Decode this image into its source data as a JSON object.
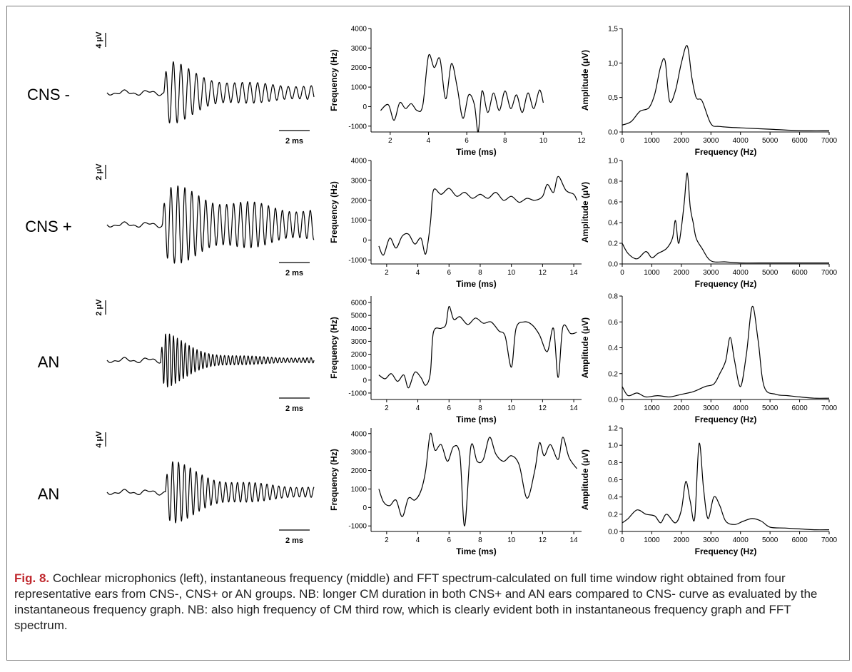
{
  "caption": {
    "fig_label": "Fig. 8.",
    "text": "Cochlear microphonics (left), instantaneous frequency (middle) and FFT spectrum-calculated on full time window right obtained from four representative ears from CNS-, CNS+ or AN groups. NB: longer CM duration in both CNS+ and AN ears compared to CNS- curve as evaluated by the instantaneous frequency graph. NB: also high frequency of CM third row, which is clearly evident both in instantaneous frequency graph and FFT spectrum."
  },
  "rows": [
    {
      "label": "CNS -",
      "cm": {
        "amp_scale": "4 μV",
        "time_scale": "2 ms",
        "duration_ms": 13.5,
        "onset_ms": 3.7,
        "freq_hz": 2000,
        "peak": 1.0,
        "decay": 0.45,
        "sustain": 0.22
      },
      "inst": {
        "type": "line",
        "xlabel": "Time (ms)",
        "ylabel": "Frequency (Hz)",
        "xlim": [
          1,
          12
        ],
        "xticks": [
          2,
          4,
          6,
          8,
          10,
          12
        ],
        "ylim": [
          -1300,
          4000
        ],
        "yticks": [
          -1000,
          0,
          1000,
          2000,
          3000,
          4000
        ],
        "x": [
          1.5,
          1.9,
          2.2,
          2.5,
          2.8,
          3.1,
          3.4,
          3.7,
          4.0,
          4.3,
          4.6,
          4.9,
          5.2,
          5.5,
          5.8,
          6.1,
          6.4,
          6.6,
          6.8,
          7.1,
          7.4,
          7.7,
          8.0,
          8.3,
          8.6,
          8.9,
          9.2,
          9.5,
          9.8,
          10.0
        ],
        "y": [
          -200,
          100,
          -700,
          200,
          -100,
          150,
          -200,
          50,
          2600,
          2000,
          2450,
          400,
          2200,
          1000,
          -600,
          600,
          100,
          -1300,
          800,
          -300,
          700,
          -200,
          800,
          -100,
          600,
          -300,
          700,
          -100,
          850,
          200
        ]
      },
      "fft": {
        "type": "line",
        "xlabel": "Frequency (Hz)",
        "ylabel": "Amplitude (μV)",
        "xlim": [
          0,
          7000
        ],
        "xticks": [
          0,
          1000,
          2000,
          3000,
          4000,
          5000,
          6000,
          7000
        ],
        "ylim": [
          0,
          1.5
        ],
        "yticks": [
          "0.0",
          "0,5",
          "1,0",
          "1,5"
        ],
        "ytickvals": [
          0,
          0.5,
          1.0,
          1.5
        ],
        "x": [
          0,
          300,
          600,
          900,
          1100,
          1300,
          1450,
          1600,
          1800,
          2000,
          2200,
          2350,
          2500,
          2700,
          3000,
          3300,
          4000,
          5000,
          6000,
          7000
        ],
        "y": [
          0.1,
          0.15,
          0.3,
          0.35,
          0.55,
          0.95,
          1.03,
          0.45,
          0.6,
          1.0,
          1.25,
          0.8,
          0.5,
          0.45,
          0.12,
          0.08,
          0.06,
          0.04,
          0.02,
          0.02
        ]
      }
    },
    {
      "label": "CNS +",
      "cm": {
        "amp_scale": "2 μV",
        "time_scale": "2 ms",
        "duration_ms": 13.5,
        "onset_ms": 3.6,
        "freq_hz": 2200,
        "peak": 1.0,
        "decay": 0.18,
        "sustain": 0.3
      },
      "inst": {
        "type": "line",
        "xlabel": "Time (ms)",
        "ylabel": "Frequency (Hz)",
        "xlim": [
          1,
          14.5
        ],
        "xticks": [
          2,
          4,
          6,
          8,
          10,
          12,
          14
        ],
        "ylim": [
          -1200,
          4000
        ],
        "yticks": [
          -1000,
          0,
          1000,
          2000,
          3000,
          4000
        ],
        "x": [
          1.5,
          1.8,
          2.2,
          2.6,
          3.0,
          3.4,
          3.8,
          4.2,
          4.5,
          4.8,
          5.0,
          5.5,
          6.0,
          6.5,
          7.0,
          7.5,
          8.0,
          8.5,
          9.0,
          9.5,
          10.0,
          10.5,
          11.0,
          11.5,
          12.0,
          12.3,
          12.7,
          13.0,
          13.5,
          14.0,
          14.2
        ],
        "y": [
          -300,
          -750,
          100,
          -400,
          200,
          300,
          -200,
          100,
          -700,
          800,
          2500,
          2300,
          2600,
          2200,
          2400,
          2100,
          2300,
          2100,
          2400,
          2000,
          2200,
          1900,
          2100,
          2000,
          2200,
          2800,
          2400,
          3200,
          2500,
          2300,
          2000
        ]
      },
      "fft": {
        "type": "line",
        "xlabel": "Frequency (Hz)",
        "ylabel": "Amplitude (μV)",
        "xlim": [
          0,
          7000
        ],
        "xticks": [
          0,
          1000,
          2000,
          3000,
          4000,
          5000,
          6000,
          7000
        ],
        "ylim": [
          0,
          1.0
        ],
        "yticks": [
          "0.0",
          "0.2",
          "0.4",
          "0.6",
          "0.8",
          "1.0"
        ],
        "ytickvals": [
          0,
          0.2,
          0.4,
          0.6,
          0.8,
          1.0
        ],
        "x": [
          0,
          200,
          500,
          800,
          1000,
          1200,
          1500,
          1700,
          1800,
          1900,
          2000,
          2100,
          2200,
          2300,
          2400,
          2500,
          2700,
          3000,
          3500,
          4000,
          5000,
          6000,
          7000
        ],
        "y": [
          0.2,
          0.1,
          0.05,
          0.12,
          0.06,
          0.1,
          0.15,
          0.25,
          0.42,
          0.2,
          0.35,
          0.6,
          0.88,
          0.55,
          0.4,
          0.25,
          0.15,
          0.03,
          0.02,
          0.01,
          0.01,
          0.01,
          0.01
        ]
      }
    },
    {
      "label": "AN",
      "cm": {
        "amp_scale": "2 μV",
        "time_scale": "2 ms",
        "duration_ms": 13.5,
        "onset_ms": 3.5,
        "freq_hz": 3900,
        "peak": 1.0,
        "decay": 0.55,
        "sustain": 0.08
      },
      "inst": {
        "type": "line",
        "xlabel": "Time (ms)",
        "ylabel": "Frequency (Hz)",
        "xlim": [
          1,
          14.5
        ],
        "xticks": [
          2,
          4,
          6,
          8,
          10,
          12,
          14
        ],
        "ylim": [
          -1500,
          6500
        ],
        "yticks": [
          -1000,
          0,
          1000,
          2000,
          3000,
          4000,
          5000,
          6000
        ],
        "x": [
          1.5,
          1.9,
          2.3,
          2.7,
          3.1,
          3.4,
          3.8,
          4.2,
          4.5,
          4.8,
          5.0,
          5.5,
          5.8,
          6.0,
          6.3,
          6.7,
          7.2,
          7.7,
          8.2,
          8.7,
          9.2,
          9.6,
          10.0,
          10.3,
          10.8,
          11.3,
          11.8,
          12.3,
          12.7,
          13.0,
          13.3,
          13.8,
          14.2
        ],
        "y": [
          400,
          100,
          500,
          -100,
          400,
          -600,
          600,
          200,
          -400,
          500,
          3700,
          4000,
          4300,
          5700,
          4700,
          4900,
          4300,
          4800,
          4400,
          4500,
          3800,
          3400,
          1000,
          4000,
          4500,
          4300,
          3500,
          2200,
          4000,
          200,
          4100,
          3600,
          3700
        ]
      },
      "fft": {
        "type": "line",
        "xlabel": "Frequency (Hz)",
        "ylabel": "Amplitude (μV)",
        "xlim": [
          0,
          7000
        ],
        "xticks": [
          0,
          1000,
          2000,
          3000,
          4000,
          5000,
          6000,
          7000
        ],
        "ylim": [
          0,
          0.8
        ],
        "yticks": [
          "0.0",
          "0.2",
          "0.4",
          "0.6",
          "0.8"
        ],
        "ytickvals": [
          0,
          0.2,
          0.4,
          0.6,
          0.8
        ],
        "x": [
          0,
          200,
          500,
          800,
          1200,
          1600,
          2000,
          2400,
          2800,
          3100,
          3300,
          3500,
          3650,
          3800,
          4000,
          4200,
          4400,
          4600,
          4800,
          5200,
          5600,
          6000,
          6500,
          7000
        ],
        "y": [
          0.1,
          0.03,
          0.05,
          0.02,
          0.03,
          0.02,
          0.04,
          0.06,
          0.1,
          0.12,
          0.2,
          0.3,
          0.48,
          0.3,
          0.1,
          0.35,
          0.72,
          0.45,
          0.1,
          0.04,
          0.03,
          0.02,
          0.01,
          0.01
        ]
      }
    },
    {
      "label": "AN",
      "cm": {
        "amp_scale": "4 μV",
        "time_scale": "2 ms",
        "duration_ms": 13.5,
        "onset_ms": 3.8,
        "freq_hz": 2600,
        "peak": 1.0,
        "decay": 0.35,
        "sustain": 0.14
      },
      "inst": {
        "type": "line",
        "xlabel": "Time (ms)",
        "ylabel": "Frequency (Hz)",
        "xlim": [
          1,
          14.5
        ],
        "xticks": [
          2,
          4,
          6,
          8,
          10,
          12,
          14
        ],
        "ylim": [
          -1300,
          4300
        ],
        "yticks": [
          -1000,
          0,
          1000,
          2000,
          3000,
          4000
        ],
        "x": [
          1.5,
          1.8,
          2.2,
          2.6,
          3.0,
          3.4,
          3.8,
          4.2,
          4.5,
          4.8,
          5.1,
          5.5,
          5.9,
          6.3,
          6.7,
          7.0,
          7.4,
          7.8,
          8.2,
          8.6,
          9.0,
          9.5,
          10.0,
          10.5,
          11.0,
          11.5,
          11.8,
          12.1,
          12.5,
          13.0,
          13.3,
          13.7,
          14.2
        ],
        "y": [
          1000,
          300,
          100,
          400,
          -500,
          500,
          400,
          900,
          2000,
          4000,
          3100,
          3400,
          2500,
          3300,
          2800,
          -1000,
          3300,
          2500,
          2600,
          3800,
          2900,
          2500,
          2800,
          2300,
          500,
          2000,
          3500,
          2800,
          3400,
          2600,
          3800,
          2700,
          2100
        ]
      },
      "fft": {
        "type": "line",
        "xlabel": "Frequency (Hz)",
        "ylabel": "Amplitude (μV)",
        "xlim": [
          0,
          7000
        ],
        "xticks": [
          0,
          1000,
          2000,
          3000,
          4000,
          5000,
          6000,
          7000
        ],
        "ylim": [
          0,
          1.2
        ],
        "yticks": [
          "0.0",
          "0.2",
          "0.4",
          "0.6",
          "0.8",
          "1.0",
          "1.2"
        ],
        "ytickvals": [
          0,
          0.2,
          0.4,
          0.6,
          0.8,
          1.0,
          1.2
        ],
        "x": [
          0,
          200,
          500,
          800,
          1100,
          1300,
          1500,
          1800,
          2000,
          2150,
          2300,
          2450,
          2600,
          2750,
          2900,
          3100,
          3300,
          3500,
          3800,
          4100,
          4400,
          4700,
          5000,
          5500,
          6000,
          6500,
          7000
        ],
        "y": [
          0.1,
          0.15,
          0.25,
          0.2,
          0.18,
          0.1,
          0.2,
          0.1,
          0.25,
          0.58,
          0.35,
          0.15,
          1.02,
          0.5,
          0.15,
          0.4,
          0.3,
          0.12,
          0.08,
          0.12,
          0.15,
          0.12,
          0.05,
          0.04,
          0.03,
          0.02,
          0.02
        ]
      }
    }
  ]
}
